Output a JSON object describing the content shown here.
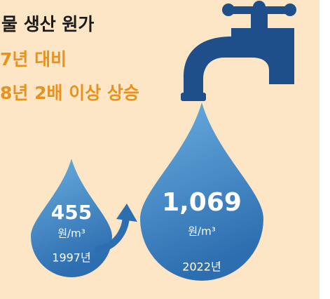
{
  "title": "물 생산 원가",
  "subtitle_lines": [
    "7년 대비",
    "8년 2배 이상 상승"
  ],
  "drops": [
    {
      "value": "455",
      "unit": "원/m³",
      "year": "1997년"
    },
    {
      "value": "1,069",
      "unit": "원/m³",
      "year": "2022년"
    }
  ]
}
